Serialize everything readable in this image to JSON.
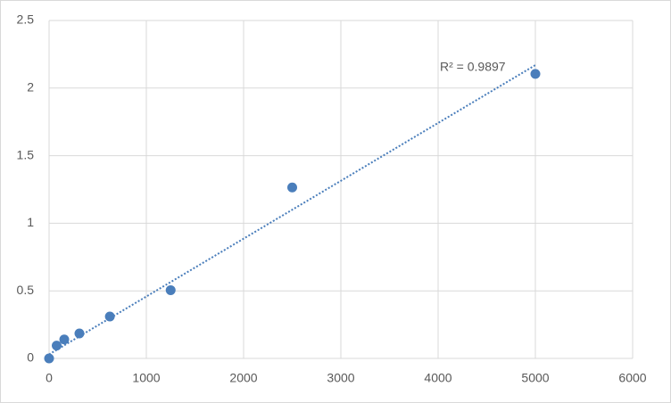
{
  "chart_data": {
    "type": "scatter",
    "series": [
      {
        "color": "#4a7ebb",
        "x": [
          0,
          78,
          156,
          312,
          625,
          1250,
          2500,
          5000
        ],
        "values": [
          0,
          0.095,
          0.14,
          0.185,
          0.31,
          0.505,
          1.265,
          2.105
        ]
      }
    ],
    "trendline": {
      "x": [
        0,
        5000
      ],
      "y": [
        0.03,
        2.17
      ],
      "label": "R² = 0.9897",
      "color": "#4a7ebb",
      "style": "dotted"
    },
    "xlim": [
      0,
      6000
    ],
    "xticks": [
      0,
      1000,
      2000,
      3000,
      4000,
      5000,
      6000
    ],
    "ylim": [
      0,
      2.5
    ],
    "yticks": [
      0,
      0.5,
      1,
      1.5,
      2,
      2.5
    ],
    "grid": true
  }
}
